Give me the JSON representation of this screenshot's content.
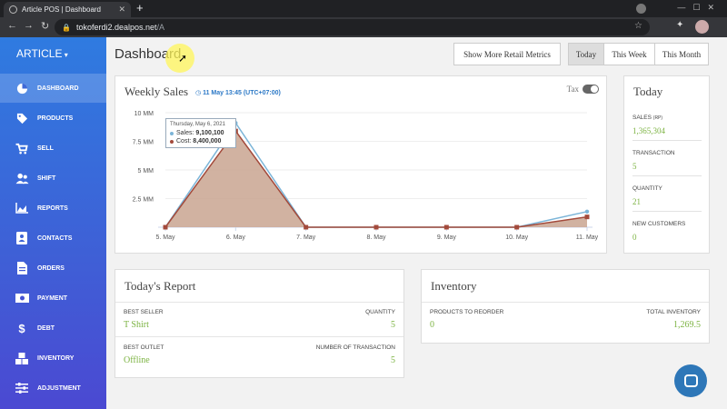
{
  "browser": {
    "tab_title": "Article POS | Dashboard",
    "url_host": "tokoferdi2.dealpos.net",
    "url_path": "/A"
  },
  "sidebar": {
    "brand": "ARTICLE",
    "items": [
      {
        "label": "DASHBOARD",
        "icon": "pie-chart-icon",
        "active": true
      },
      {
        "label": "PRODUCTS",
        "icon": "tag-icon"
      },
      {
        "label": "SELL",
        "icon": "cart-icon"
      },
      {
        "label": "SHIFT",
        "icon": "users-icon"
      },
      {
        "label": "REPORTS",
        "icon": "area-chart-icon"
      },
      {
        "label": "CONTACTS",
        "icon": "contact-card-icon"
      },
      {
        "label": "ORDERS",
        "icon": "document-icon"
      },
      {
        "label": "PAYMENT",
        "icon": "money-icon"
      },
      {
        "label": "DEBT",
        "icon": "dollar-icon"
      },
      {
        "label": "INVENTORY",
        "icon": "cubes-icon"
      },
      {
        "label": "ADJUSTMENT",
        "icon": "sliders-icon"
      }
    ]
  },
  "header": {
    "title": "Dashboard",
    "retail_metrics_label": "Show More Retail Metrics",
    "period_tabs": [
      {
        "label": "Today",
        "active": true
      },
      {
        "label": "This Week"
      },
      {
        "label": "This Month"
      }
    ]
  },
  "weekly_sales": {
    "title": "Weekly Sales",
    "date_label": "11 May 13:45 (UTC+07:00)",
    "tax_label": "Tax",
    "tooltip": {
      "date": "Thursday, May 6, 2021",
      "sales_label": "Sales:",
      "sales_value": "9,100,100",
      "cost_label": "Cost:",
      "cost_value": "8,400,000"
    },
    "colors": {
      "sales": "#7cb5d8",
      "cost": "#a34a3b",
      "cost_fill": "#c9a591"
    }
  },
  "chart_data": {
    "type": "area",
    "categories": [
      "5. May",
      "6. May",
      "7. May",
      "8. May",
      "9. May",
      "10. May",
      "11. May"
    ],
    "y_ticks": [
      "2.5 MM",
      "5 MM",
      "7.5 MM",
      "10 MM"
    ],
    "ylim": [
      0,
      10000000
    ],
    "series": [
      {
        "name": "Sales",
        "values": [
          0,
          9100100,
          0,
          0,
          0,
          0,
          1365304
        ]
      },
      {
        "name": "Cost",
        "values": [
          0,
          8400000,
          0,
          0,
          0,
          0,
          900000
        ]
      }
    ]
  },
  "today": {
    "title": "Today",
    "metrics": [
      {
        "label": "SALES",
        "unit": "(RP)",
        "value": "1,365,304"
      },
      {
        "label": "TRANSACTION",
        "unit": "",
        "value": "5"
      },
      {
        "label": "QUANTITY",
        "unit": "",
        "value": "21"
      },
      {
        "label": "NEW CUSTOMERS",
        "unit": "",
        "value": "0"
      }
    ]
  },
  "todays_report": {
    "title": "Today's Report",
    "best_seller_label": "BEST SELLER",
    "best_seller_value": "T Shirt",
    "quantity_label": "QUANTITY",
    "quantity_value": "5",
    "best_outlet_label": "BEST OUTLET",
    "best_outlet_value": "Offline",
    "transactions_label": "NUMBER OF TRANSACTION",
    "transactions_value": "5"
  },
  "inventory": {
    "title": "Inventory",
    "reorder_label": "PRODUCTS TO REORDER",
    "reorder_value": "0",
    "total_label": "TOTAL INVENTORY",
    "total_value": "1,269.5"
  }
}
